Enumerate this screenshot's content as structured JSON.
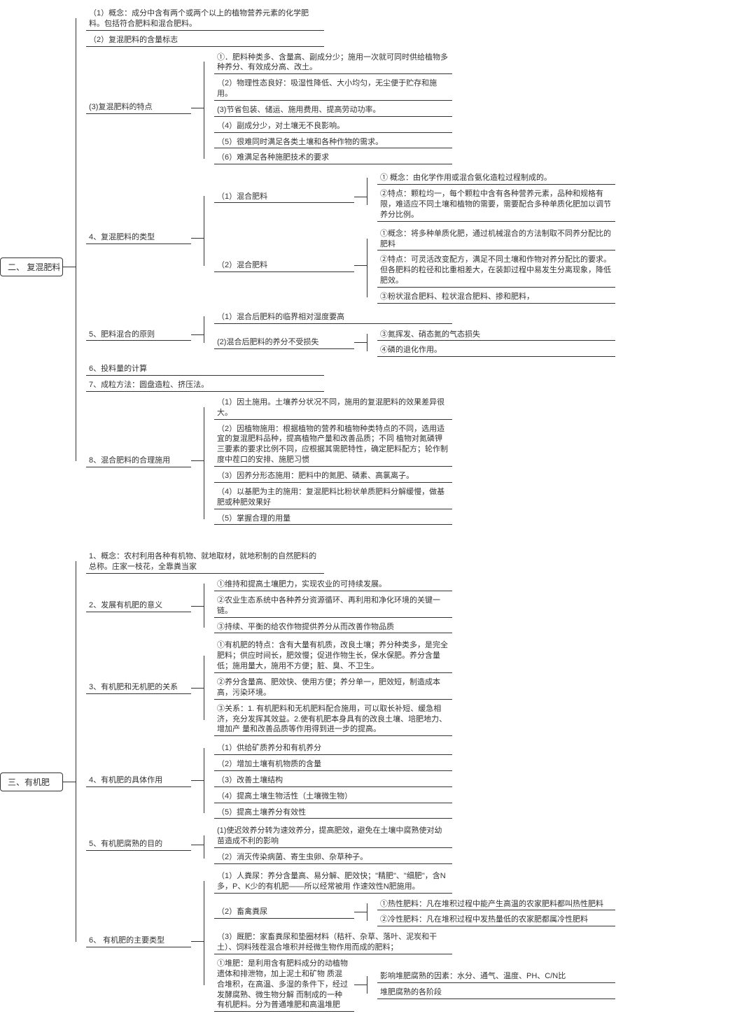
{
  "colors": {
    "bg": "#ffffff",
    "line": "#333333",
    "text": "#333333"
  },
  "typography": {
    "base_fontsize": 11,
    "root_fontsize": 12,
    "line_height": 1.35
  },
  "layout": {
    "type": "mindmap",
    "direction": "left-to-right",
    "connector_style": "bracket"
  },
  "roots": [
    {
      "label": "二、 复混肥料",
      "children": [
        {
          "label": "（1）概念：成分中含有两个或两个以上的植物营养元素的化学肥料。包括符合肥料和混合肥料。"
        },
        {
          "label": "（2）复混肥料的含量标志"
        },
        {
          "label": "(3)复混肥料的特点",
          "children": [
            {
              "label": "①．肥料种类多、含量高、副成分少；施用一次就可同时供给植物多种养分、有效成分高、改土。"
            },
            {
              "label": "（2）物理性态良好：吸湿性降低、大小均匀，无尘便于贮存和施用。"
            },
            {
              "label": "(3)节省包装、储运、施用费用、提高劳动功率。"
            },
            {
              "label": "（4）副成分少，对土壤无不良影响。"
            },
            {
              "label": "（5）很难同时满足各类土壤和各种作物的需求。"
            },
            {
              "label": "（6）难满足各种施肥技术的要求"
            }
          ]
        },
        {
          "label": "4、复混肥料的类型",
          "children": [
            {
              "label": "（1）混合肥料",
              "children": [
                {
                  "label": "①                        概念：由化学作用或混合氨化造粒过程制成的。"
                },
                {
                  "label": "②特点：颗粒均一，每个颗粒中含有各种营养元素，品种和规格有限，难适应不同土壤和植物的需要，需要配合多种单质化肥加以调节养分比例。"
                }
              ]
            },
            {
              "label": "（2）混合肥料",
              "children": [
                {
                  "label": "①概念：将多种单质化肥，通过机械混合的方法制取不同养分配比的肥料"
                },
                {
                  "label": "②特点：可灵活改变配方，满足不同土壤和作物对养分配比的要求。但各肥料的粒径和比重相差大，在装卸过程中易发生分离现象，降低肥效。"
                },
                {
                  "label": "③粉状混合肥料、粒状混合肥料、掺和肥料，"
                }
              ]
            }
          ]
        },
        {
          "label": "5、肥料混合的原则",
          "children": [
            {
              "label": "（1）混合后肥料的临界相对湿度要高"
            },
            {
              "label": "(2)混合后肥料的养分不受损失",
              "children": [
                {
                  "label": "③氮挥发、硝态氮的气态损失"
                },
                {
                  "label": "④磷的退化作用。"
                }
              ]
            }
          ]
        },
        {
          "label": "6、投料量的计算"
        },
        {
          "label": "7、成粒方法：圆盘造粒、挤压法。"
        },
        {
          "label": "8、混合肥料的合理施用",
          "children": [
            {
              "label": "（1）因土施用。土壤养分状况不同，施用的复混肥料的效果差异很大。"
            },
            {
              "label": "（2）因植物施用：根据植物的营养和植物种类特点的不同，选用适宜的复混肥料品种，提高植物产量和改善品质；不同 植物对氮磷钾三要素的要求比例不同，应根据其需肥特性，确定肥料配方；轮作制度中茬口的安排、施肥习惯"
            },
            {
              "label": "（3）因养分形态施用：肥料中的氮肥、磷素、高氯离子。"
            },
            {
              "label": "（4）以基肥为主的施用：复混肥料比粉状单质肥料分解缓慢，做基肥或种肥效果好"
            },
            {
              "label": "（5）掌握合理的用量"
            }
          ]
        }
      ]
    },
    {
      "label": "三、有机肥",
      "children": [
        {
          "label": "1、概念：农村利用各种有机物、就地取材，就地积制的自然肥料的总称。庄家一枝花，全靠粪当家"
        },
        {
          "label": "2、发展有机肥的意义",
          "children": [
            {
              "label": "①维持和提高土壤肥力，实现农业的可持续发展。"
            },
            {
              "label": "②农业生态系统中各种养分资源循环、再利用和净化环境的关键一链。"
            },
            {
              "label": "③持续、平衡的给农作物提供养分从而改善作物品质"
            }
          ]
        },
        {
          "label": "3、有机肥和无机肥的关系",
          "children": [
            {
              "label": "①有机肥的特点：含有大量有机质，改良土壤；养分种类多，是完全肥料；供应时间长，肥效慢；促进作物生长，保水保肥。养分含量低；施用量大，施用不方便；脏、臭、不卫生。"
            },
            {
              "label": "②养分含量高、肥效快、使用方便；养分单一，肥效短，制造成本高，污染环境。"
            },
            {
              "label": "③关系：1. 有机肥料和无机肥料配合施用，可以取长补短、缓急相济，充分发挥其效益。2.使有机肥本身具有的改良土壤、培肥地力、增加产\n量和改善品质等作用得到进一步的提高。"
            }
          ]
        },
        {
          "label": "4、有机肥的具体作用",
          "children": [
            {
              "label": "（1）供给矿质养分和有机养分"
            },
            {
              "label": "（2）增加土壤有机物质的含量"
            },
            {
              "label": "（3）改善土壤结构"
            },
            {
              "label": "（4）提高土壤生物活性（土壤微生物）"
            },
            {
              "label": "（5）提高土壤养分有效性"
            }
          ]
        },
        {
          "label": "5、有机肥腐熟的目的",
          "children": [
            {
              "label": "(1)使迟效养分转为速效养分，提高肥效，避免在土壤中腐熟使对幼苗造成不利的影响"
            },
            {
              "label": "（2）消灭传染病菌、寄生虫卵、杂草种子。"
            }
          ]
        },
        {
          "label": "6、                       有机肥的主要类型",
          "children": [
            {
              "label": "（1）人粪尿：养分含量高、易分解、肥效快；\"精肥\"、\"细肥\"，含N多，P、K少的有机肥——所以经常被用\n作速效性N肥施用。"
            },
            {
              "label": "（2）畜禽粪尿",
              "children": [
                {
                  "label": "①热性肥料：凡在堆积过程中能产生高温的农家肥料都叫热性肥料"
                },
                {
                  "label": "②冷性肥料：凡在堆积过程中发热量低的农家肥都属冷性肥料"
                }
              ]
            },
            {
              "label": "（3）厩肥：家畜粪尿和垫圈材料（秸杆、杂草、落叶、泥炭和干土）、饲料残茬混合堆积并经微生物作用而成的肥料；"
            },
            {
              "label": "①堆肥：是利用含有肥料成分的动植物遗体和排泄物，加上泥土和矿物\n质混合堆积，在高温、多湿的条件下，经过发酵腐熟、微生物分解\n而制成的一种有机肥料。分为普通堆肥和高温堆肥",
              "children": [
                {
                  "label": "影响堆肥腐熟的因素：水分、通气、温度、PH、C/N比"
                },
                {
                  "label": "堆肥腐熟的各阶段"
                }
              ]
            }
          ]
        }
      ]
    }
  ]
}
